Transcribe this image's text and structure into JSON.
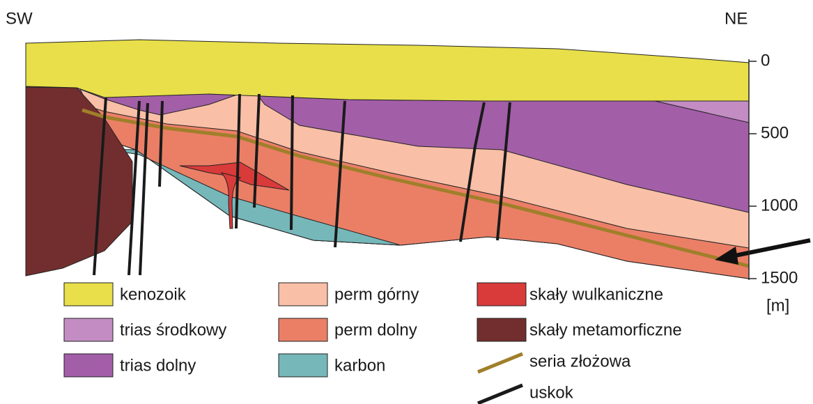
{
  "header": {
    "left": "SW",
    "right": "NE"
  },
  "depth_axis": {
    "ticks": [
      0,
      500,
      1000,
      1500
    ],
    "unit": "[m]"
  },
  "legend": {
    "swatches": [
      {
        "label": "kenozoik",
        "color": "#e8df4a"
      },
      {
        "label": "trias środkowy",
        "color": "#c38dc4"
      },
      {
        "label": "trias dolny",
        "color": "#a35ea8"
      },
      {
        "label": "perm górny",
        "color": "#f9bfa7"
      },
      {
        "label": "perm dolny",
        "color": "#ea7f66"
      },
      {
        "label": "karbon",
        "color": "#76b7ba"
      },
      {
        "label": "skały wulkaniczne",
        "color": "#d93a3a"
      },
      {
        "label": "skały metamorficzne",
        "color": "#722e2e"
      }
    ],
    "lines": [
      {
        "label": "seria złożowa",
        "color": "#a07f2a"
      },
      {
        "label": "uskok",
        "color": "#1a1a1a"
      }
    ]
  }
}
